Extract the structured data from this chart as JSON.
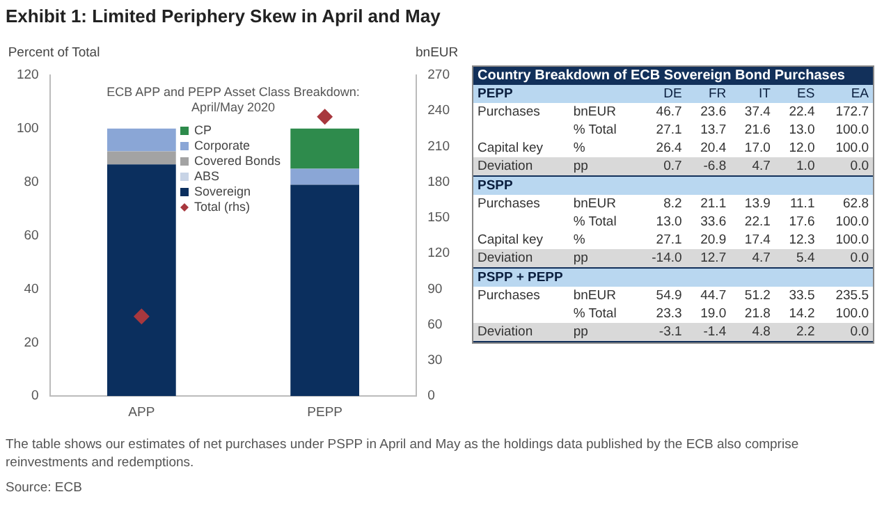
{
  "chart_data": [
    {
      "type": "bar",
      "title": "Exhibit 1: Limited Periphery Skew in April and May",
      "subtitle": "ECB APP and PEPP Asset Class Breakdown: April/May 2020",
      "ylabel": "Percent of Total",
      "y2label": "bnEUR",
      "categories": [
        "APP",
        "PEPP"
      ],
      "stacked": true,
      "series": [
        {
          "name": "Sovereign",
          "color": "#0b2f5e",
          "values": [
            86.6,
            79
          ]
        },
        {
          "name": "ABS",
          "color": "#c8d4e6",
          "values": [
            0,
            0
          ]
        },
        {
          "name": "Covered Bonds",
          "color": "#a3a3a3",
          "values": [
            4.9,
            0
          ]
        },
        {
          "name": "Corporate",
          "color": "#8aa6d6",
          "values": [
            8.5,
            6
          ]
        },
        {
          "name": "CP",
          "color": "#2e8b4c",
          "values": [
            0,
            15
          ]
        },
        {
          "name": "Total (rhs)",
          "type": "scatter",
          "axis": "y2",
          "marker": "diamond",
          "color": "#a8383e",
          "x": [
            "APP",
            "PEPP"
          ],
          "values": [
            67,
            235
          ]
        }
      ],
      "ylim": [
        0,
        120
      ],
      "yticks": [
        0,
        20,
        40,
        60,
        80,
        100,
        120
      ],
      "y2lim": [
        0,
        270
      ],
      "y2ticks": [
        0,
        30,
        60,
        90,
        120,
        150,
        180,
        210,
        240,
        270
      ],
      "grid": false,
      "legend": "top",
      "annotations": [
        "The table shows our estimates of net purchases under PSPP in April and May as the holdings data published by the ECB also comprise reinvestments and redemptions.",
        "Source: ECB"
      ]
    },
    {
      "type": "heatmap",
      "data_labels": true,
      "title": "Country Breakdown of ECB Sovereign Bond Purchases",
      "categories": [
        "DE",
        "FR",
        "IT",
        "ES",
        "EA"
      ],
      "y_categories": [
        "PEPP",
        "Purchases",
        null,
        "Capital key",
        "Deviation",
        "PSPP",
        "Purchases",
        null,
        "Capital key",
        "Deviation",
        "PSPP + PEPP",
        "Purchases",
        null,
        "Deviation"
      ],
      "y2_categories": [
        null,
        "bnEUR",
        "% Total",
        "%",
        "pp",
        null,
        "bnEUR",
        "% Total",
        "%",
        "pp",
        null,
        "bnEUR",
        "% Total",
        "pp"
      ],
      "cells": [
        null,
        [
          46.7,
          23.6,
          37.4,
          22.4,
          172.7
        ],
        [
          27.1,
          13.7,
          21.6,
          13.0,
          100.0
        ],
        [
          26.4,
          20.4,
          17.0,
          12.0,
          100.0
        ],
        [
          0.7,
          -6.8,
          4.7,
          1.0,
          0.0
        ],
        null,
        [
          8.2,
          21.1,
          13.9,
          11.1,
          62.8
        ],
        [
          13.0,
          33.6,
          22.1,
          17.6,
          100.0
        ],
        [
          27.1,
          20.9,
          17.4,
          12.3,
          100.0
        ],
        [
          -14.0,
          12.7,
          4.7,
          5.4,
          0.0
        ],
        null,
        [
          54.9,
          44.7,
          51.2,
          33.5,
          235.5
        ],
        [
          23.3,
          19.0,
          21.8,
          14.2,
          100.0
        ],
        [
          -3.1,
          -1.4,
          4.8,
          2.2,
          0.0
        ]
      ],
      "cell_labels": [
        null,
        [
          "46.7",
          "23.6",
          "37.4",
          "22.4",
          "172.7"
        ],
        [
          "27.1",
          "13.7",
          "21.6",
          "13.0",
          "100.0"
        ],
        [
          "26.4",
          "20.4",
          "17.0",
          "12.0",
          "100.0"
        ],
        [
          "0.7",
          "-6.8",
          "4.7",
          "1.0",
          "0.0"
        ],
        null,
        [
          "8.2",
          "21.1",
          "13.9",
          "11.1",
          "62.8"
        ],
        [
          "13.0",
          "33.6",
          "22.1",
          "17.6",
          "100.0"
        ],
        [
          "27.1",
          "20.9",
          "17.4",
          "12.3",
          "100.0"
        ],
        [
          "-14.0",
          "12.7",
          "4.7",
          "5.4",
          "0.0"
        ],
        null,
        [
          "54.9",
          "44.7",
          "51.2",
          "33.5",
          "235.5"
        ],
        [
          "23.3",
          "19.0",
          "21.8",
          "14.2",
          "100.0"
        ],
        [
          "-3.1",
          "-1.4",
          "4.8",
          "2.2",
          "0.0"
        ]
      ]
    }
  ]
}
